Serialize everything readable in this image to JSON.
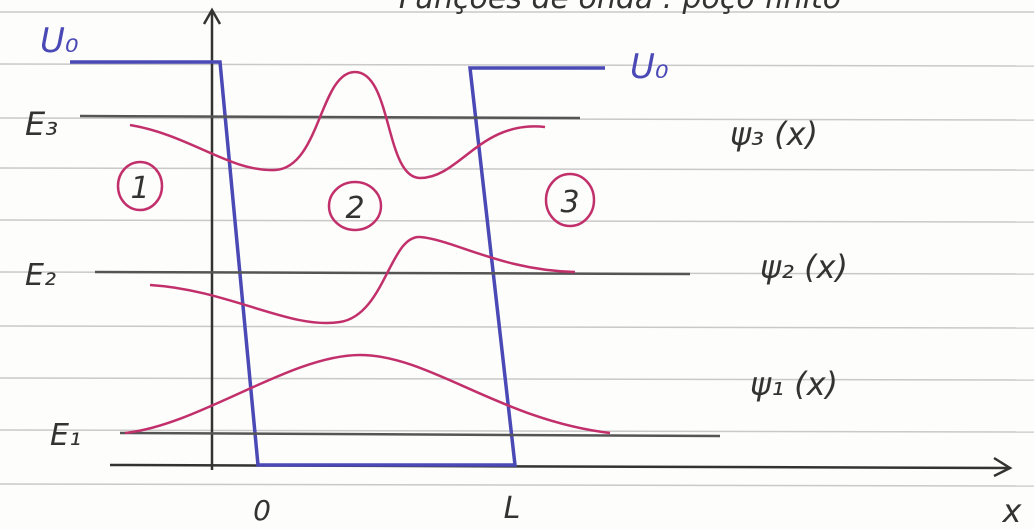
{
  "header": {
    "title": "Funções de onda : poço finito"
  },
  "potential": {
    "left_label": "U₀",
    "right_label": "U₀"
  },
  "levels": [
    {
      "label": "E₃",
      "wavefunction": "ψ₃ (x)"
    },
    {
      "label": "E₂",
      "wavefunction": "ψ₂ (x)"
    },
    {
      "label": "E₁",
      "wavefunction": "ψ₁ (x)"
    }
  ],
  "regions": [
    "1",
    "2",
    "3"
  ],
  "axis": {
    "origin": "0",
    "well_width": "L",
    "x_label": "x"
  }
}
